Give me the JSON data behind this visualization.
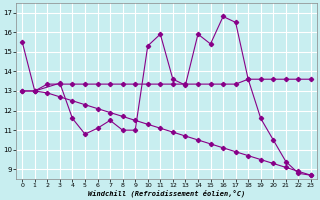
{
  "xlabel": "Windchill (Refroidissement éolien,°C)",
  "background_color": "#c8eef0",
  "grid_color": "#ffffff",
  "line_color": "#880088",
  "x_ticks": [
    0,
    1,
    2,
    3,
    4,
    5,
    6,
    7,
    8,
    9,
    10,
    11,
    12,
    13,
    14,
    15,
    16,
    17,
    18,
    19,
    20,
    21,
    22,
    23
  ],
  "y_ticks": [
    9,
    10,
    11,
    12,
    13,
    14,
    15,
    16,
    17
  ],
  "ylim": [
    8.5,
    17.5
  ],
  "xlim": [
    -0.5,
    23.5
  ],
  "line1_x": [
    0,
    1,
    3,
    4,
    5,
    6,
    7,
    8,
    9,
    10,
    11,
    12,
    13,
    14,
    15,
    16,
    17,
    18,
    19,
    20,
    21,
    22,
    23
  ],
  "line1_y": [
    15.5,
    13.0,
    13.4,
    11.6,
    10.8,
    11.1,
    11.5,
    11.0,
    11.0,
    15.3,
    15.9,
    13.6,
    13.3,
    15.9,
    15.4,
    16.8,
    16.5,
    13.6,
    11.6,
    10.5,
    9.4,
    8.8,
    8.7
  ],
  "line2_x": [
    0,
    1,
    2,
    3,
    4,
    5,
    6,
    7,
    8,
    9,
    10,
    11,
    12,
    13,
    14,
    15,
    16,
    17,
    18,
    19,
    20,
    21,
    22,
    23
  ],
  "line2_y": [
    13.0,
    13.0,
    13.35,
    13.35,
    13.35,
    13.35,
    13.35,
    13.35,
    13.35,
    13.35,
    13.35,
    13.35,
    13.35,
    13.35,
    13.35,
    13.35,
    13.35,
    13.35,
    13.6,
    13.6,
    13.6,
    13.6,
    13.6,
    13.6
  ],
  "line3_x": [
    0,
    1,
    2,
    3,
    4,
    5,
    6,
    7,
    8,
    9,
    10,
    11,
    12,
    13,
    14,
    15,
    16,
    17,
    18,
    19,
    20,
    21,
    22,
    23
  ],
  "line3_y": [
    13.0,
    13.0,
    12.9,
    12.7,
    12.5,
    12.3,
    12.1,
    11.9,
    11.7,
    11.5,
    11.3,
    11.1,
    10.9,
    10.7,
    10.5,
    10.3,
    10.1,
    9.9,
    9.7,
    9.5,
    9.3,
    9.1,
    8.9,
    8.7
  ]
}
